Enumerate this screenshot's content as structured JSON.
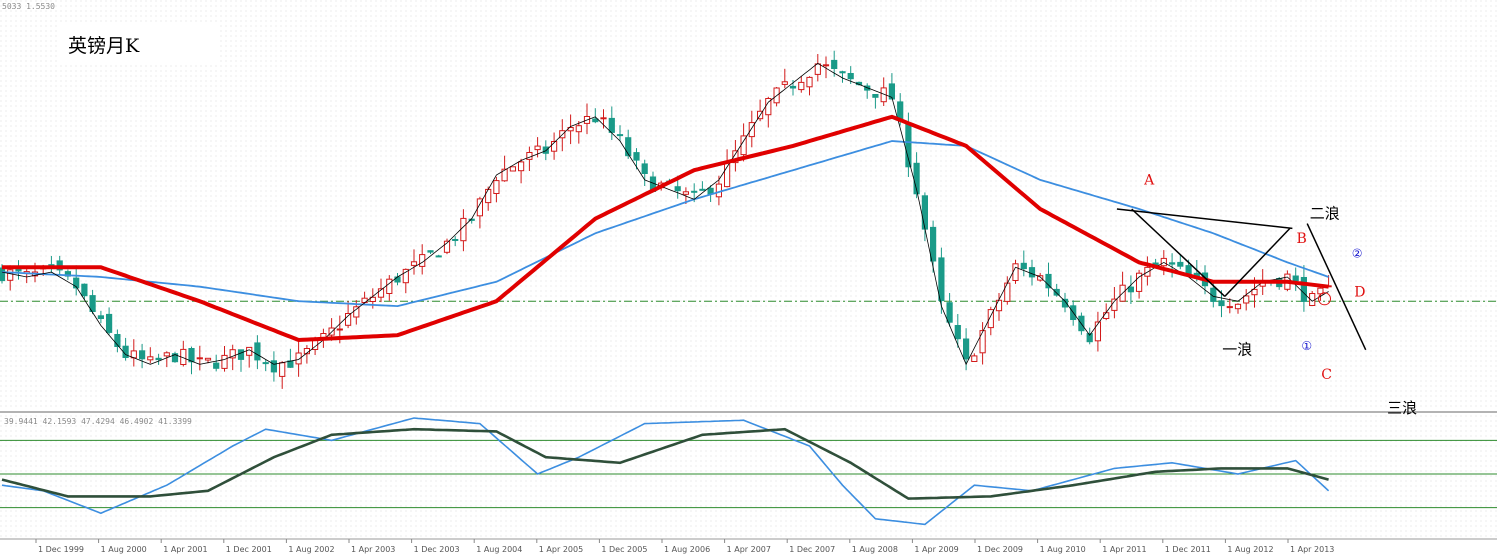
{
  "header": {
    "price_readout": "5033 1.5530"
  },
  "title": "英镑月K",
  "oscillator": {
    "readout": "39.9441 42.1593 47.4294 46.4902 41.3399"
  },
  "colors": {
    "bull": "#d21a1a",
    "bear": "#1a9a88",
    "ma_red": "#e00000",
    "ma_blue": "#3c8ee0",
    "ma_thin": "#000000",
    "stoch_main": "#2f4f3a",
    "stoch_blue": "#3c8ee0",
    "level_line": "#2e8b2e"
  },
  "chart_data": {
    "type": "candlestick",
    "title": "英镑月K",
    "x_tick_labels": [
      "1 Dec 1999",
      "1 Aug 2000",
      "1 Apr 2001",
      "1 Dec 2001",
      "1 Aug 2002",
      "1 Apr 2003",
      "1 Dec 2003",
      "1 Aug 2004",
      "1 Apr 2005",
      "1 Dec 2005",
      "1 Aug 2006",
      "1 Apr 2007",
      "1 Dec 2007",
      "1 Aug 2008",
      "1 Apr 2009",
      "1 Dec 2009",
      "1 Aug 2010",
      "1 Apr 2011",
      "1 Dec 2011",
      "1 Aug 2012",
      "1 Apr 2013"
    ],
    "close_path": [
      [
        0,
        1.61
      ],
      [
        3,
        1.6
      ],
      [
        6,
        1.61
      ],
      [
        9,
        1.58
      ],
      [
        12,
        1.5
      ],
      [
        15,
        1.44
      ],
      [
        18,
        1.42
      ],
      [
        21,
        1.44
      ],
      [
        24,
        1.42
      ],
      [
        27,
        1.43
      ],
      [
        30,
        1.45
      ],
      [
        33,
        1.42
      ],
      [
        36,
        1.43
      ],
      [
        39,
        1.47
      ],
      [
        42,
        1.52
      ],
      [
        45,
        1.56
      ],
      [
        48,
        1.6
      ],
      [
        51,
        1.63
      ],
      [
        54,
        1.67
      ],
      [
        57,
        1.72
      ],
      [
        60,
        1.81
      ],
      [
        63,
        1.84
      ],
      [
        66,
        1.86
      ],
      [
        69,
        1.91
      ],
      [
        72,
        1.93
      ],
      [
        75,
        1.88
      ],
      [
        78,
        1.8
      ],
      [
        81,
        1.78
      ],
      [
        84,
        1.76
      ],
      [
        87,
        1.8
      ],
      [
        90,
        1.88
      ],
      [
        93,
        1.96
      ],
      [
        96,
        2.0
      ],
      [
        99,
        2.04
      ],
      [
        102,
        2.01
      ],
      [
        105,
        1.99
      ],
      [
        108,
        1.97
      ],
      [
        111,
        1.78
      ],
      [
        114,
        1.54
      ],
      [
        117,
        1.42
      ],
      [
        120,
        1.52
      ],
      [
        123,
        1.62
      ],
      [
        126,
        1.6
      ],
      [
        129,
        1.55
      ],
      [
        132,
        1.48
      ],
      [
        135,
        1.55
      ],
      [
        138,
        1.6
      ],
      [
        141,
        1.63
      ],
      [
        144,
        1.6
      ],
      [
        147,
        1.56
      ],
      [
        150,
        1.55
      ],
      [
        153,
        1.59
      ],
      [
        156,
        1.6
      ],
      [
        159,
        1.55
      ],
      [
        161,
        1.57
      ]
    ],
    "ma_red_path": [
      [
        0,
        1.62
      ],
      [
        12,
        1.62
      ],
      [
        24,
        1.55
      ],
      [
        36,
        1.47
      ],
      [
        48,
        1.48
      ],
      [
        60,
        1.55
      ],
      [
        72,
        1.72
      ],
      [
        84,
        1.82
      ],
      [
        96,
        1.87
      ],
      [
        108,
        1.93
      ],
      [
        117,
        1.87
      ],
      [
        126,
        1.74
      ],
      [
        138,
        1.63
      ],
      [
        147,
        1.59
      ],
      [
        156,
        1.59
      ],
      [
        161,
        1.58
      ]
    ],
    "ma_blue_path": [
      [
        0,
        1.61
      ],
      [
        12,
        1.6
      ],
      [
        24,
        1.58
      ],
      [
        36,
        1.55
      ],
      [
        48,
        1.54
      ],
      [
        60,
        1.59
      ],
      [
        72,
        1.69
      ],
      [
        84,
        1.76
      ],
      [
        96,
        1.82
      ],
      [
        108,
        1.88
      ],
      [
        117,
        1.87
      ],
      [
        126,
        1.8
      ],
      [
        138,
        1.74
      ],
      [
        147,
        1.69
      ],
      [
        156,
        1.63
      ],
      [
        161,
        1.6
      ]
    ],
    "y_range": [
      1.33,
      2.15
    ],
    "x_range": [
      0,
      163
    ],
    "stochastic": {
      "range": [
        0,
        100
      ],
      "levels": [
        80,
        50,
        20
      ],
      "main": [
        [
          0,
          45
        ],
        [
          8,
          30
        ],
        [
          18,
          30
        ],
        [
          25,
          35
        ],
        [
          33,
          65
        ],
        [
          40,
          85
        ],
        [
          50,
          90
        ],
        [
          60,
          88
        ],
        [
          66,
          65
        ],
        [
          75,
          60
        ],
        [
          85,
          85
        ],
        [
          95,
          90
        ],
        [
          103,
          60
        ],
        [
          110,
          28
        ],
        [
          120,
          30
        ],
        [
          130,
          40
        ],
        [
          140,
          52
        ],
        [
          148,
          55
        ],
        [
          156,
          55
        ],
        [
          161,
          45
        ]
      ],
      "signal": [
        [
          0,
          40
        ],
        [
          5,
          35
        ],
        [
          12,
          15
        ],
        [
          20,
          40
        ],
        [
          28,
          75
        ],
        [
          32,
          90
        ],
        [
          40,
          80
        ],
        [
          50,
          100
        ],
        [
          58,
          95
        ],
        [
          65,
          50
        ],
        [
          70,
          65
        ],
        [
          78,
          95
        ],
        [
          90,
          98
        ],
        [
          98,
          75
        ],
        [
          102,
          40
        ],
        [
          106,
          10
        ],
        [
          112,
          5
        ],
        [
          118,
          40
        ],
        [
          125,
          35
        ],
        [
          135,
          55
        ],
        [
          142,
          60
        ],
        [
          150,
          50
        ],
        [
          157,
          62
        ],
        [
          161,
          35
        ]
      ]
    },
    "reference_line": 1.55,
    "annotations": [
      {
        "text": "A",
        "kind": "red",
        "x": 138.6,
        "y": 1.79
      },
      {
        "text": "B",
        "kind": "red",
        "x": 157.1,
        "y": 1.67
      },
      {
        "text": "C",
        "kind": "red",
        "x": 160.1,
        "y": 1.39
      },
      {
        "text": "D",
        "kind": "red",
        "x": 164.1,
        "y": 1.56
      },
      {
        "text": "二浪",
        "kind": "black",
        "x": 158.7,
        "y": 1.72
      },
      {
        "text": "一浪",
        "kind": "black",
        "x": 148.1,
        "y": 1.44
      },
      {
        "text": "三浪",
        "kind": "black",
        "x": 168.1,
        "y": 1.32
      },
      {
        "text": "①",
        "kind": "blue",
        "x": 157.7,
        "y": 1.45
      },
      {
        "text": "②",
        "kind": "blue",
        "x": 163.8,
        "y": 1.64
      }
    ]
  }
}
